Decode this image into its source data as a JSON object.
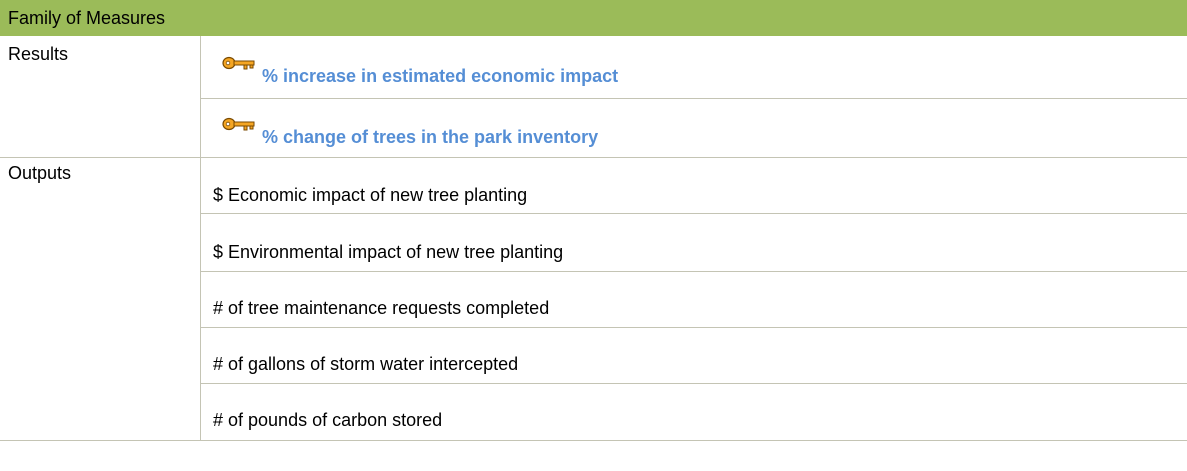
{
  "header": {
    "title": "Family of Measures"
  },
  "table": {
    "rows": [
      {
        "label": "Results",
        "items": [
          "% increase in estimated economic impact",
          "% change of trees in the park inventory"
        ]
      },
      {
        "label": "Outputs",
        "items": [
          "$ Economic impact of new tree planting",
          "$ Environmental impact of new tree planting",
          "# of tree maintenance requests completed",
          "# of gallons of storm water intercepted",
          "# of pounds of carbon stored"
        ]
      }
    ]
  }
}
